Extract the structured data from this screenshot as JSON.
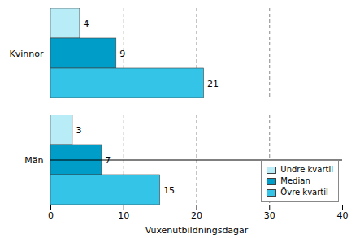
{
  "chart_data": {
    "type": "bar",
    "orientation": "horizontal",
    "categories": [
      "Kvinnor",
      "Män"
    ],
    "series": [
      {
        "name": "Undre kvartil",
        "color": "#b8ecf7",
        "values": [
          4,
          3
        ]
      },
      {
        "name": "Median",
        "color": "#009dc8",
        "values": [
          9,
          7
        ]
      },
      {
        "name": "Övre kvartil",
        "color": "#33c4e8",
        "values": [
          21,
          15
        ]
      }
    ],
    "xlabel": "Vuxenutbildningsdagar",
    "xlim": [
      0,
      40
    ],
    "xticks": [
      0,
      10,
      20,
      30,
      40
    ],
    "grid": true,
    "legend": "lower right",
    "data_labels": true
  }
}
